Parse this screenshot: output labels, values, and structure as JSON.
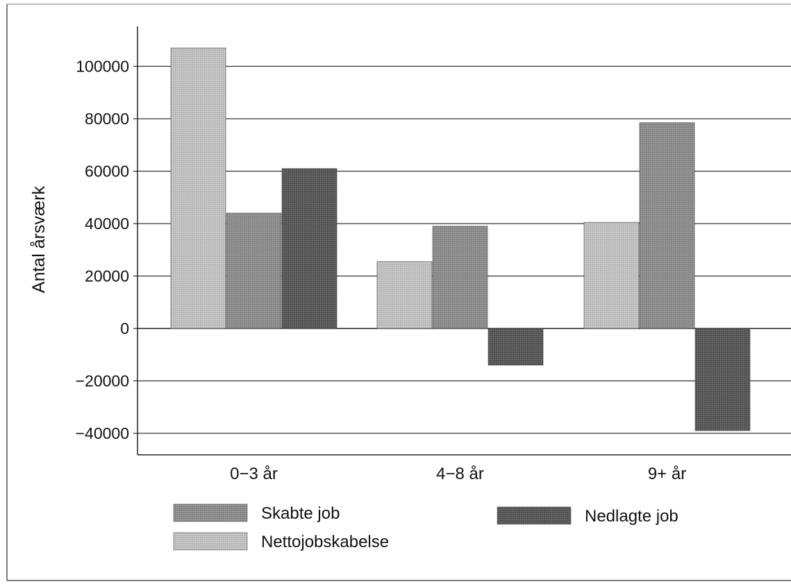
{
  "chart_data": {
    "type": "bar",
    "ylabel": "Antal årsværk",
    "xlabel": "",
    "categories": [
      "0−3 år",
      "4−8 år",
      "9+ år"
    ],
    "ylim": [
      -50000,
      115000
    ],
    "yticks": [
      100000,
      80000,
      60000,
      40000,
      20000,
      0,
      -20000,
      -40000
    ],
    "ytick_labels": [
      "100000",
      "80000",
      "60000",
      "40000",
      "20000",
      "0",
      "−20000",
      "−40000"
    ],
    "grid": true,
    "legend_position": "bottom",
    "series": [
      {
        "name": "Nettojobskabelse",
        "values": [
          107000,
          25500,
          40500
        ],
        "color": "#c4c4c4"
      },
      {
        "name": "Skabte job",
        "values": [
          44000,
          39000,
          78500
        ],
        "color": "#8e8e8e"
      },
      {
        "name": "Nedlagte job",
        "values": [
          61000,
          -14000,
          -39000
        ],
        "color": "#585858"
      }
    ],
    "legend": [
      {
        "label": "Skabte job",
        "series": 1
      },
      {
        "label": "Nedlagte job",
        "series": 2
      },
      {
        "label": "Nettojobskabelse",
        "series": 0
      }
    ]
  }
}
